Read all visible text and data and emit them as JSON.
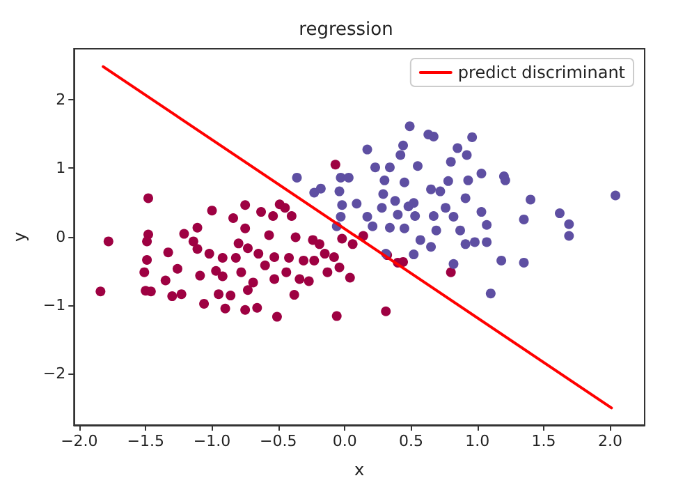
{
  "chart_data": {
    "type": "scatter",
    "title": "regression",
    "xlabel": "x",
    "ylabel": "y",
    "xlim": [
      -2.04,
      2.26
    ],
    "ylim": [
      -2.75,
      2.74
    ],
    "xticks": [
      {
        "value": -2,
        "label": "−2.0"
      },
      {
        "value": -1.5,
        "label": "−1.5"
      },
      {
        "value": -1,
        "label": "−1.0"
      },
      {
        "value": -0.5,
        "label": "−0.5"
      },
      {
        "value": 0,
        "label": "0.0"
      },
      {
        "value": 0.5,
        "label": "0.5"
      },
      {
        "value": 1,
        "label": "1.0"
      },
      {
        "value": 1.5,
        "label": "1.5"
      },
      {
        "value": 2,
        "label": "2.0"
      }
    ],
    "yticks": [
      {
        "value": -2,
        "label": "−2"
      },
      {
        "value": -1,
        "label": "−1"
      },
      0,
      1,
      2
    ],
    "grid": false,
    "legend": "top right",
    "marker": "circle",
    "series": [
      {
        "color": "#9e0142",
        "x": [
          -1.84,
          -1.78,
          -1.48,
          -1.48,
          -1.49,
          -1.49,
          -1.51,
          -1.5,
          -1.46,
          -1.35,
          -1.33,
          -1.3,
          -1.26,
          -1.23,
          -1.21,
          -1.14,
          -1.11,
          -1.11,
          -1.09,
          -1.06,
          -1.02,
          -1,
          -0.97,
          -0.95,
          -0.92,
          -0.92,
          -0.9,
          -0.86,
          -0.84,
          -0.82,
          -0.8,
          -0.78,
          -0.75,
          -0.75,
          -0.75,
          -0.73,
          -0.73,
          -0.69,
          -0.66,
          -0.65,
          -0.63,
          -0.6,
          -0.57,
          -0.54,
          -0.53,
          -0.53,
          -0.51,
          -0.49,
          -0.45,
          -0.44,
          -0.42,
          -0.4,
          -0.38,
          -0.37,
          -0.34,
          -0.31,
          -0.27,
          -0.24,
          -0.23,
          -0.19,
          -0.15,
          -0.13,
          -0.08,
          -0.07,
          -0.06,
          -0.04,
          -0.02,
          0.04,
          0.06,
          0.14,
          0.31,
          0.32,
          0.4,
          0.44,
          0.8
        ],
        "values": [
          -0.8,
          -0.07,
          0.56,
          0.03,
          -0.07,
          -0.34,
          -0.52,
          -0.79,
          -0.8,
          -0.64,
          -0.23,
          -0.87,
          -0.47,
          -0.84,
          0.04,
          -0.07,
          0.13,
          -0.18,
          -0.57,
          -0.98,
          -0.25,
          0.38,
          -0.5,
          -0.84,
          -0.58,
          -0.31,
          -1.05,
          -0.86,
          0.27,
          -0.31,
          -0.1,
          -0.52,
          0.46,
          -1.07,
          0.12,
          -0.17,
          -0.78,
          -0.67,
          -1.04,
          -0.25,
          0.36,
          -0.42,
          0.02,
          0.3,
          -0.3,
          -0.62,
          -1.17,
          0.47,
          0.42,
          -0.52,
          -0.31,
          0.3,
          -0.85,
          -0.01,
          -0.62,
          -0.35,
          -0.65,
          -0.05,
          -0.35,
          -0.11,
          -0.25,
          -0.52,
          -0.3,
          1.05,
          -1.16,
          -0.45,
          -0.03,
          -0.6,
          -0.11,
          0.01,
          -1.09,
          -0.27,
          -0.38,
          -0.37,
          -0.52
        ]
      },
      {
        "color": "#5e4fa2",
        "x": [
          -0.36,
          -0.23,
          -0.18,
          -0.06,
          -0.04,
          -0.03,
          0.03,
          -0.02,
          -0.03,
          0.09,
          0.17,
          0.17,
          0.21,
          0.23,
          0.28,
          0.3,
          0.29,
          0.31,
          0.34,
          0.34,
          0.38,
          0.4,
          0.44,
          0.42,
          0.45,
          0.45,
          0.48,
          0.49,
          0.52,
          0.52,
          0.53,
          0.55,
          0.57,
          0.63,
          0.67,
          0.65,
          0.65,
          0.67,
          0.69,
          0.72,
          0.76,
          0.78,
          0.8,
          0.82,
          0.82,
          0.85,
          0.87,
          0.91,
          0.92,
          0.93,
          0.91,
          0.96,
          0.98,
          1.03,
          1.03,
          1.07,
          1.07,
          1.1,
          1.18,
          1.2,
          1.21,
          1.35,
          1.35,
          1.4,
          1.62,
          1.69,
          1.69,
          2.04
        ],
        "values": [
          0.86,
          0.64,
          0.7,
          0.15,
          0.66,
          0.86,
          0.86,
          0.46,
          0.29,
          0.48,
          1.27,
          0.29,
          0.15,
          1.01,
          0.42,
          0.82,
          0.62,
          -0.25,
          1.01,
          0.13,
          0.52,
          0.32,
          1.33,
          1.19,
          0.79,
          0.12,
          0.44,
          1.61,
          0.49,
          -0.26,
          0.3,
          1.03,
          -0.05,
          1.49,
          1.46,
          0.69,
          -0.15,
          0.3,
          0.09,
          0.66,
          0.42,
          0.81,
          1.09,
          -0.4,
          0.29,
          1.29,
          0.09,
          -0.11,
          1.19,
          0.82,
          0.56,
          1.45,
          -0.08,
          0.92,
          0.36,
          0.17,
          -0.08,
          -0.83,
          -0.35,
          0.88,
          0.82,
          -0.38,
          0.25,
          0.54,
          0.34,
          0.18,
          0.01,
          0.6
        ]
      },
      {
        "type": "line",
        "name": "predict discriminant",
        "color": "#ff0000",
        "marker": "none",
        "line_style": "solid",
        "x": [
          -1.82,
          2.01
        ],
        "values": [
          2.48,
          -2.5
        ]
      }
    ]
  }
}
